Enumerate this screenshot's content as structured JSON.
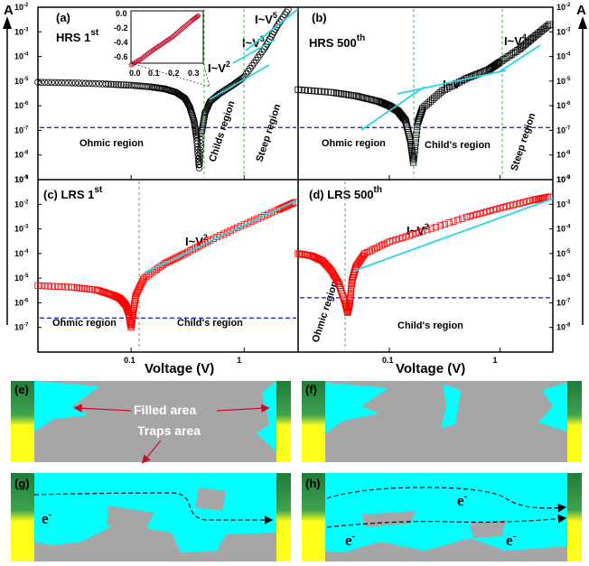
{
  "chart_data": [
    {
      "panel": "(a)",
      "title": "HRS 1",
      "title_sup": "st",
      "type": "scatter",
      "xscale": "log",
      "yscale": "log",
      "xlim": [
        0.015,
        3
      ],
      "ylim": [
        1e-09,
        0.01
      ],
      "y_unit": "A",
      "marker": "open-circle",
      "color": "#000000",
      "series": [
        {
          "x": [
            0.015,
            0.03,
            0.06,
            0.1,
            0.15,
            0.2,
            0.25,
            0.3,
            0.33,
            0.36,
            0.38,
            0.4,
            0.42,
            0.45,
            0.5,
            0.6,
            0.8,
            1.0,
            1.5,
            2.0,
            2.8
          ],
          "y": [
            9e-06,
            8.5e-06,
            7.6e-06,
            6.8e-06,
            5.8e-06,
            4.8e-06,
            3.5e-06,
            2e-06,
            9e-07,
            2.5e-07,
            5e-08,
            3e-09,
            8e-08,
            5e-07,
            1.5e-06,
            3e-06,
            7e-06,
            1.5e-05,
            0.0002,
            0.002,
            0.02
          ]
        }
      ],
      "fits": [
        "I~V",
        "I~V",
        "I~V"
      ],
      "fit_powers": [
        "2",
        "3",
        "5"
      ],
      "regions": [
        "Ohmic region",
        "Childs region",
        "Steep region"
      ],
      "reference_current": 1.3e-07,
      "inset": {
        "xlim": [
          0,
          0.35
        ],
        "ylim": [
          -0.6,
          0.0
        ],
        "x_ticks": [
          "0.0",
          "0.1",
          "0.2",
          "0.3"
        ],
        "y_ticks": [
          "0.0",
          "-0.2",
          "-0.4",
          "-0.6"
        ],
        "x": [
          0.0,
          0.05,
          0.1,
          0.15,
          0.2,
          0.25,
          0.3,
          0.33
        ],
        "y": [
          -0.62,
          -0.55,
          -0.46,
          -0.38,
          -0.3,
          -0.2,
          -0.1,
          -0.05
        ]
      }
    },
    {
      "panel": "(b)",
      "title": "HRS 500",
      "title_sup": "th",
      "type": "scatter",
      "xscale": "log",
      "yscale": "log",
      "xlim": [
        0.015,
        3
      ],
      "ylim": [
        1e-09,
        0.01
      ],
      "y_unit": "A",
      "marker": "open-square",
      "color": "#000000",
      "series": [
        {
          "x": [
            0.015,
            0.03,
            0.05,
            0.08,
            0.1,
            0.12,
            0.14,
            0.155,
            0.165,
            0.18,
            0.2,
            0.3,
            0.5,
            0.8,
            1.0,
            1.5,
            2.0,
            2.8
          ],
          "y": [
            4.5e-06,
            3.5e-06,
            2.5e-06,
            1.5e-06,
            1e-06,
            6e-07,
            2.5e-07,
            4e-08,
            5e-09,
            2e-07,
            8e-07,
            4e-06,
            1.3e-05,
            3e-05,
            6e-05,
            0.0002,
            0.0006,
            0.002
          ]
        }
      ],
      "fits": [
        "I~V",
        "I~V"
      ],
      "fit_powers": [
        "2",
        "4"
      ],
      "regions": [
        "Ohmic region",
        "Child's region",
        "Steep region"
      ],
      "reference_current": 1.3e-07
    },
    {
      "panel": "(c)",
      "title": "LRS 1",
      "title_sup": "st",
      "type": "scatter",
      "xscale": "log",
      "yscale": "log",
      "xlim": [
        0.015,
        3
      ],
      "ylim": [
        1e-08,
        0.1
      ],
      "y_unit": "A",
      "marker": "open-square",
      "color": "#ff0000",
      "series": [
        {
          "x": [
            0.015,
            0.03,
            0.05,
            0.07,
            0.08,
            0.09,
            0.095,
            0.1,
            0.105,
            0.11,
            0.13,
            0.2,
            0.3,
            0.5,
            1.0,
            2.0,
            2.8
          ],
          "y": [
            5e-06,
            4.3e-06,
            3.3e-06,
            2e-06,
            1.5e-06,
            8e-07,
            4e-07,
            1e-07,
            5e-07,
            2e-06,
            1e-05,
            4e-05,
            0.0001,
            0.00035,
            0.0015,
            0.006,
            0.012
          ]
        }
      ],
      "fits": [
        "I~V"
      ],
      "fit_powers": [
        "2"
      ],
      "regions": [
        "Ohmic region",
        "Child's region"
      ],
      "reference_current": 2.4e-07
    },
    {
      "panel": "(d)",
      "title": "LRS 500",
      "title_sup": "th",
      "type": "scatter",
      "xscale": "log",
      "yscale": "log",
      "xlim": [
        0.015,
        3
      ],
      "ylim": [
        1e-09,
        0.01
      ],
      "y_unit": "A",
      "marker": "open-square",
      "color": "#ff0000",
      "series": [
        {
          "x": [
            0.015,
            0.02,
            0.025,
            0.03,
            0.035,
            0.04,
            0.042,
            0.044,
            0.046,
            0.05,
            0.06,
            0.1,
            0.2,
            0.5,
            1.0,
            2.0,
            2.8
          ],
          "y": [
            1e-05,
            8e-06,
            5e-06,
            2e-06,
            6e-07,
            1e-07,
            4e-08,
            1e-07,
            8e-07,
            3e-06,
            1e-05,
            3e-05,
            8e-05,
            0.0003,
            0.0007,
            0.0015,
            0.002
          ]
        }
      ],
      "fits": [
        "I~V"
      ],
      "fit_powers": [
        "2"
      ],
      "regions": [
        "Ohmic region",
        "Child's region"
      ],
      "reference_current": 1.6e-07
    }
  ],
  "axes": {
    "y_unit_label": "A",
    "xlabel": "Voltage (V)",
    "x_ticks": [
      "0.1",
      "1"
    ],
    "y_ticks_top": [
      "10",
      "10",
      "10",
      "10",
      "10",
      "10",
      "10",
      "10"
    ],
    "y_exp_top": [
      "-2",
      "-3",
      "-4",
      "-5",
      "-6",
      "-7",
      "-8",
      "-9"
    ],
    "y_exp_c": [
      "-1",
      "-2",
      "-3",
      "-4",
      "-5",
      "-6",
      "-7"
    ],
    "y_exp_d": [
      "-2",
      "-3",
      "-4",
      "-5",
      "-6",
      "-7",
      "-8"
    ]
  },
  "schematics": {
    "panels": [
      "(e)",
      "(f)",
      "(g)",
      "(h)"
    ],
    "labels": {
      "filled": "Filled area",
      "traps": "Traps area",
      "electron": "e",
      "electron_sup": "-"
    },
    "colors": {
      "filled": "#00ffff",
      "traps": "#a6a6a6",
      "electrode_top": "#217a3c",
      "electrode_bottom": "#ffff1a"
    }
  }
}
